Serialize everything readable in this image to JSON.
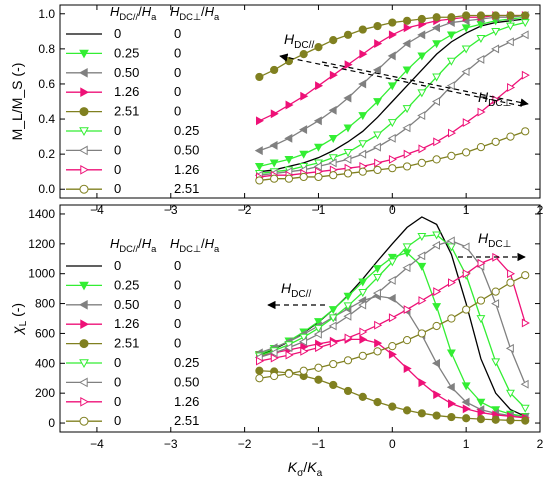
{
  "chart_data": [
    {
      "type": "line",
      "panel": "top",
      "ylabel": "M_L/M_S (-)",
      "xlabel": "",
      "xlim": [
        -4.5,
        2
      ],
      "ylim": [
        -0.05,
        1.05
      ],
      "xticks": [
        -4,
        -3,
        -2,
        -1,
        0,
        1,
        2
      ],
      "yticks": [
        0.0,
        0.2,
        0.4,
        0.6,
        0.8,
        1.0
      ],
      "xtick_labels": [
        "−4",
        "−3",
        "−2",
        "−1",
        "0",
        "1",
        "2"
      ],
      "ytick_labels": [
        "0.0",
        "0.2",
        "0.4",
        "0.6",
        "0.8",
        "1.0"
      ],
      "legend_header": {
        "col1": "HDC///Ha",
        "col2": "HDC⊥/Ha"
      },
      "annotations": [
        {
          "text": "HDC//",
          "arrow": "left"
        },
        {
          "text": "HDC⊥",
          "arrow": "right"
        }
      ],
      "x": [
        -1.8,
        -1.6,
        -1.4,
        -1.2,
        -1.0,
        -0.8,
        -0.6,
        -0.4,
        -0.2,
        0.0,
        0.2,
        0.4,
        0.6,
        0.8,
        1.0,
        1.2,
        1.4,
        1.6,
        1.8
      ],
      "series": [
        {
          "col1": "0",
          "col2": "0",
          "color": "#000000",
          "marker": "none",
          "values": [
            0.1,
            0.11,
            0.13,
            0.15,
            0.18,
            0.22,
            0.27,
            0.33,
            0.41,
            0.5,
            0.59,
            0.68,
            0.77,
            0.84,
            0.89,
            0.93,
            0.95,
            0.96,
            0.97
          ]
        },
        {
          "col1": "0.25",
          "col2": "0",
          "color": "#33ee33",
          "marker": "triangle-down",
          "values": [
            0.13,
            0.15,
            0.17,
            0.2,
            0.24,
            0.29,
            0.35,
            0.42,
            0.5,
            0.59,
            0.68,
            0.76,
            0.83,
            0.88,
            0.92,
            0.94,
            0.96,
            0.97,
            0.98
          ]
        },
        {
          "col1": "0.50",
          "col2": "0",
          "color": "#808080",
          "marker": "triangle-left",
          "values": [
            0.22,
            0.25,
            0.29,
            0.34,
            0.39,
            0.45,
            0.52,
            0.6,
            0.68,
            0.76,
            0.83,
            0.88,
            0.92,
            0.95,
            0.96,
            0.97,
            0.98,
            0.98,
            0.99
          ]
        },
        {
          "col1": "1.26",
          "col2": "0",
          "color": "#ee1177",
          "marker": "triangle-right",
          "values": [
            0.39,
            0.43,
            0.48,
            0.53,
            0.59,
            0.65,
            0.71,
            0.77,
            0.83,
            0.88,
            0.92,
            0.94,
            0.96,
            0.97,
            0.98,
            0.98,
            0.99,
            0.99,
            0.99
          ]
        },
        {
          "col1": "2.51",
          "col2": "0",
          "color": "#808020",
          "marker": "circle",
          "values": [
            0.64,
            0.68,
            0.73,
            0.77,
            0.81,
            0.85,
            0.88,
            0.91,
            0.93,
            0.95,
            0.96,
            0.97,
            0.98,
            0.98,
            0.99,
            0.99,
            0.99,
            0.99,
            0.99
          ]
        },
        {
          "col1": "0",
          "col2": "0.25",
          "color": "#33ee33",
          "marker": "triangle-down-open",
          "values": [
            0.09,
            0.1,
            0.11,
            0.13,
            0.15,
            0.18,
            0.21,
            0.26,
            0.31,
            0.38,
            0.46,
            0.55,
            0.64,
            0.73,
            0.8,
            0.86,
            0.9,
            0.93,
            0.95
          ]
        },
        {
          "col1": "0",
          "col2": "0.50",
          "color": "#808080",
          "marker": "triangle-left-open",
          "values": [
            0.08,
            0.09,
            0.1,
            0.11,
            0.13,
            0.15,
            0.17,
            0.2,
            0.24,
            0.29,
            0.35,
            0.42,
            0.5,
            0.59,
            0.67,
            0.74,
            0.8,
            0.84,
            0.88
          ]
        },
        {
          "col1": "0",
          "col2": "1.26",
          "color": "#ee1177",
          "marker": "triangle-right-open",
          "values": [
            0.07,
            0.08,
            0.08,
            0.09,
            0.1,
            0.11,
            0.12,
            0.13,
            0.15,
            0.17,
            0.2,
            0.23,
            0.27,
            0.32,
            0.38,
            0.44,
            0.51,
            0.58,
            0.65
          ]
        },
        {
          "col1": "0",
          "col2": "2.51",
          "color": "#808020",
          "marker": "circle-open",
          "values": [
            0.05,
            0.06,
            0.06,
            0.07,
            0.07,
            0.08,
            0.09,
            0.1,
            0.11,
            0.12,
            0.13,
            0.15,
            0.17,
            0.19,
            0.21,
            0.24,
            0.27,
            0.3,
            0.33
          ]
        }
      ]
    },
    {
      "type": "line",
      "panel": "bottom",
      "ylabel": "χL (-)",
      "xlabel": "Kσ/Ka",
      "xlim": [
        -4.5,
        2
      ],
      "ylim": [
        -60,
        1460
      ],
      "xticks": [
        -4,
        -3,
        -2,
        -1,
        0,
        1,
        2
      ],
      "yticks": [
        0,
        200,
        400,
        600,
        800,
        1000,
        1200,
        1400
      ],
      "xtick_labels": [
        "−4",
        "−3",
        "−2",
        "−1",
        "0",
        "1",
        "2"
      ],
      "ytick_labels": [
        "0",
        "200",
        "400",
        "600",
        "800",
        "1000",
        "1200",
        "1400"
      ],
      "legend_header": {
        "col1": "HDC///Ha",
        "col2": "HDC⊥/Ha"
      },
      "annotations": [
        {
          "text": "HDC//",
          "arrow": "left"
        },
        {
          "text": "HDC⊥",
          "arrow": "right"
        }
      ],
      "x": [
        -1.8,
        -1.6,
        -1.4,
        -1.2,
        -1.0,
        -0.8,
        -0.6,
        -0.4,
        -0.2,
        0.0,
        0.2,
        0.4,
        0.6,
        0.8,
        1.0,
        1.2,
        1.4,
        1.6,
        1.8
      ],
      "series": [
        {
          "col1": "0",
          "col2": "0",
          "color": "#000000",
          "marker": "none",
          "values": [
            455,
            495,
            545,
            605,
            675,
            760,
            855,
            965,
            1085,
            1200,
            1310,
            1380,
            1330,
            1130,
            800,
            430,
            200,
            90,
            45
          ]
        },
        {
          "col1": "0.25",
          "col2": "0",
          "color": "#33ee33",
          "marker": "triangle-down",
          "values": [
            460,
            500,
            550,
            610,
            680,
            760,
            850,
            945,
            1035,
            1110,
            1140,
            1050,
            780,
            470,
            250,
            140,
            90,
            60,
            45
          ]
        },
        {
          "col1": "0.50",
          "col2": "0",
          "color": "#808080",
          "marker": "triangle-left",
          "values": [
            470,
            505,
            545,
            595,
            650,
            710,
            765,
            820,
            850,
            835,
            750,
            590,
            400,
            240,
            140,
            90,
            65,
            50,
            40
          ]
        },
        {
          "col1": "1.26",
          "col2": "0",
          "color": "#ee1177",
          "marker": "triangle-right",
          "values": [
            450,
            470,
            490,
            510,
            530,
            548,
            560,
            560,
            535,
            460,
            365,
            270,
            190,
            130,
            95,
            70,
            55,
            45,
            35
          ]
        },
        {
          "col1": "2.51",
          "col2": "0",
          "color": "#808020",
          "marker": "circle",
          "values": [
            350,
            345,
            335,
            315,
            290,
            255,
            215,
            175,
            140,
            110,
            85,
            65,
            50,
            40,
            32,
            26,
            22,
            18,
            16
          ]
        },
        {
          "col1": "0",
          "col2": "0.25",
          "color": "#33ee33",
          "marker": "triangle-down-open",
          "values": [
            450,
            485,
            525,
            575,
            635,
            705,
            785,
            875,
            975,
            1080,
            1180,
            1250,
            1260,
            1180,
            990,
            700,
            410,
            200,
            100
          ]
        },
        {
          "col1": "0",
          "col2": "0.50",
          "color": "#808080",
          "marker": "triangle-left-open",
          "values": [
            440,
            470,
            505,
            545,
            595,
            650,
            715,
            790,
            870,
            955,
            1040,
            1120,
            1190,
            1220,
            1180,
            1050,
            800,
            500,
            260
          ]
        },
        {
          "col1": "0",
          "col2": "1.26",
          "color": "#ee1177",
          "marker": "triangle-right-open",
          "values": [
            415,
            435,
            455,
            480,
            505,
            535,
            570,
            610,
            655,
            705,
            760,
            820,
            880,
            940,
            1000,
            1070,
            1110,
            1000,
            670
          ]
        },
        {
          "col1": "0",
          "col2": "2.51",
          "color": "#808020",
          "marker": "circle-open",
          "values": [
            300,
            315,
            330,
            350,
            370,
            395,
            420,
            450,
            480,
            515,
            555,
            600,
            650,
            700,
            760,
            820,
            880,
            940,
            990
          ]
        }
      ]
    }
  ]
}
